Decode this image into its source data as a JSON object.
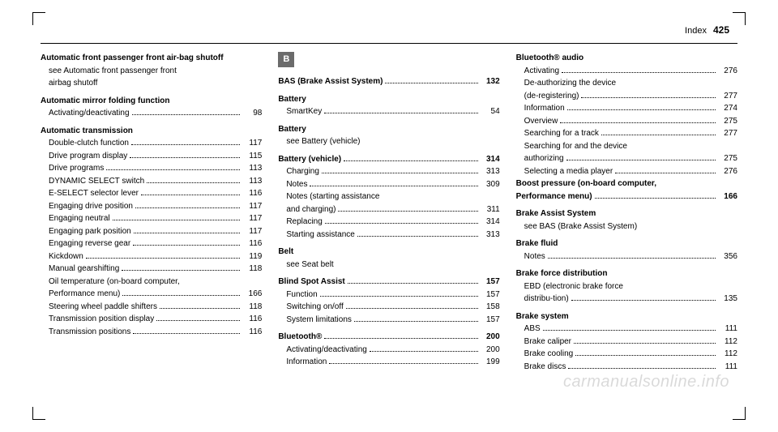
{
  "header": {
    "section": "Index",
    "page": "425"
  },
  "watermark": "carmanualsonline.info",
  "col1": {
    "groups": [
      {
        "head": "Automatic front passenger front air-bag shutoff",
        "items": [
          {
            "label": "see Automatic front passenger front airbag shutoff",
            "page": "",
            "wrap": true
          }
        ]
      },
      {
        "head": "Automatic mirror folding function",
        "items": [
          {
            "label": "Activating/deactivating",
            "page": "98"
          }
        ]
      },
      {
        "head": "Automatic transmission",
        "items": [
          {
            "label": "Double-clutch function",
            "page": "117"
          },
          {
            "label": "Drive program display",
            "page": "115"
          },
          {
            "label": "Drive programs",
            "page": "113"
          },
          {
            "label": "DYNAMIC SELECT switch",
            "page": "113"
          },
          {
            "label": "E-SELECT selector lever",
            "page": "116"
          },
          {
            "label": "Engaging drive position",
            "page": "117"
          },
          {
            "label": "Engaging neutral",
            "page": "117"
          },
          {
            "label": "Engaging park position",
            "page": "117"
          },
          {
            "label": "Engaging reverse gear",
            "page": "116"
          },
          {
            "label": "Kickdown",
            "page": "119"
          },
          {
            "label": "Manual gearshifting",
            "page": "118"
          },
          {
            "label": "Oil temperature (on-board computer, Performance menu)",
            "page": "166",
            "wrap": true
          },
          {
            "label": "Steering wheel paddle shifters",
            "page": "118"
          },
          {
            "label": "Transmission position display",
            "page": "116"
          },
          {
            "label": "Transmission positions",
            "page": "116"
          }
        ]
      }
    ]
  },
  "col2": {
    "letter": "B",
    "groups": [
      {
        "headrow": {
          "label": "BAS (Brake Assist System)",
          "page": "132"
        }
      },
      {
        "head": "Battery",
        "items": [
          {
            "label": "SmartKey",
            "page": "54"
          }
        ]
      },
      {
        "head": "Battery",
        "items": [
          {
            "label": "see Battery (vehicle)",
            "page": ""
          }
        ]
      },
      {
        "headrow": {
          "label": "Battery (vehicle)",
          "page": "314"
        },
        "items": [
          {
            "label": "Charging",
            "page": "313"
          },
          {
            "label": "Notes",
            "page": "309"
          },
          {
            "label": "Notes (starting assistance and charging)",
            "page": "311",
            "wrap": true
          },
          {
            "label": "Replacing",
            "page": "314"
          },
          {
            "label": "Starting assistance",
            "page": "313"
          }
        ]
      },
      {
        "head": "Belt",
        "items": [
          {
            "label": "see Seat belt",
            "page": ""
          }
        ]
      },
      {
        "headrow": {
          "label": "Blind Spot Assist",
          "page": "157"
        },
        "items": [
          {
            "label": "Function",
            "page": "157"
          },
          {
            "label": "Switching on/off",
            "page": "158"
          },
          {
            "label": "System limitations",
            "page": "157"
          }
        ]
      },
      {
        "headrow": {
          "label": "Bluetooth®",
          "page": "200"
        },
        "items": [
          {
            "label": "Activating/deactivating",
            "page": "200"
          },
          {
            "label": "Information",
            "page": "199"
          }
        ]
      }
    ]
  },
  "col3": {
    "groups": [
      {
        "head": "Bluetooth® audio",
        "items": [
          {
            "label": "Activating",
            "page": "276"
          },
          {
            "label": "De-authorizing (de-registering) the device",
            "page": "277",
            "wrap": true
          },
          {
            "label": "Information",
            "page": "274"
          },
          {
            "label": "Overview",
            "page": "275"
          },
          {
            "label": "Searching for a track",
            "page": "277"
          },
          {
            "label": "Searching for and authorizing the device",
            "page": "275",
            "wrap": true
          },
          {
            "label": "Selecting a media player",
            "page": "276"
          }
        ]
      },
      {
        "headrow": {
          "label": "Boost pressure (on-board computer, Performance menu)",
          "page": "166",
          "wrap": true
        }
      },
      {
        "head": "Brake Assist System",
        "items": [
          {
            "label": "see BAS (Brake Assist System)",
            "page": ""
          }
        ]
      },
      {
        "head": "Brake fluid",
        "items": [
          {
            "label": "Notes",
            "page": "356"
          }
        ]
      },
      {
        "head": "Brake force distribution",
        "items": [
          {
            "label": "EBD (electronic brake force distribu-tion)",
            "page": "135",
            "wrap": true
          }
        ]
      },
      {
        "head": "Brake system",
        "items": [
          {
            "label": "ABS",
            "page": "111"
          },
          {
            "label": "Brake caliper",
            "page": "112"
          },
          {
            "label": "Brake cooling",
            "page": "112"
          },
          {
            "label": "Brake discs",
            "page": "111"
          }
        ]
      }
    ]
  }
}
